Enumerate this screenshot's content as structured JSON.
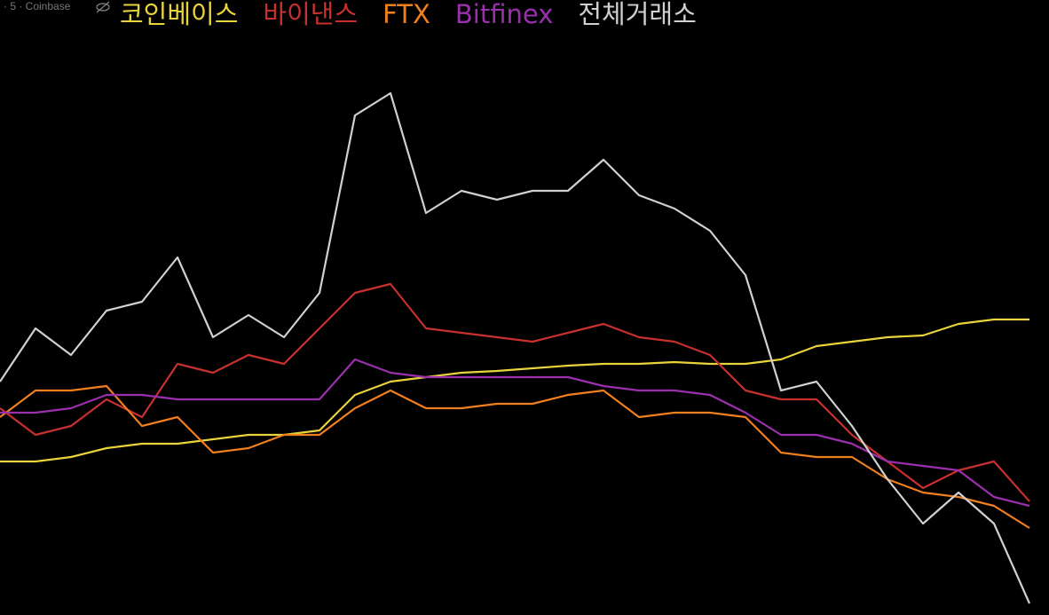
{
  "chart_data": {
    "type": "line",
    "source": "· 5 · Coinbase",
    "categories": [
      null,
      null,
      null,
      null,
      null,
      null,
      null,
      null,
      null,
      null,
      null,
      null,
      null,
      null,
      null,
      null,
      null,
      null,
      null,
      null,
      null,
      null,
      null,
      null,
      null,
      null,
      null,
      null,
      null,
      null
    ],
    "ylim": [
      0,
      693
    ],
    "legend": "top-left",
    "series": [
      {
        "name": "코인베이스",
        "color": "#e8d43a",
        "values": [
          173,
          173,
          178,
          188,
          193,
          193,
          198,
          203,
          203,
          208,
          248,
          263,
          268,
          273,
          275,
          278,
          281,
          283,
          283,
          285,
          283,
          283,
          288,
          303,
          308,
          313,
          315,
          328,
          333,
          333
        ]
      },
      {
        "name": "바이낸스",
        "color": "#c8302e",
        "values": [
          233,
          203,
          213,
          243,
          223,
          283,
          273,
          293,
          283,
          323,
          363,
          373,
          323,
          318,
          313,
          308,
          318,
          328,
          313,
          308,
          293,
          253,
          243,
          243,
          203,
          173,
          143,
          163,
          173,
          128
        ]
      },
      {
        "name": "FTX",
        "color": "#f07f1e",
        "values": [
          223,
          253,
          253,
          258,
          213,
          223,
          183,
          188,
          203,
          203,
          233,
          253,
          233,
          233,
          238,
          238,
          248,
          253,
          223,
          228,
          228,
          223,
          183,
          178,
          178,
          153,
          138,
          133,
          123,
          98
        ]
      },
      {
        "name": "Bitfinex",
        "color": "#9b2fae",
        "values": [
          228,
          228,
          233,
          248,
          248,
          243,
          243,
          243,
          243,
          243,
          288,
          273,
          268,
          268,
          268,
          268,
          268,
          258,
          253,
          253,
          248,
          228,
          203,
          203,
          193,
          173,
          168,
          163,
          133,
          123
        ]
      },
      {
        "name": "전체거래소",
        "color": "#d0d0d0",
        "values": [
          263,
          323,
          293,
          343,
          353,
          403,
          313,
          338,
          313,
          363,
          563,
          588,
          453,
          478,
          468,
          478,
          478,
          513,
          473,
          458,
          433,
          383,
          253,
          263,
          213,
          153,
          103,
          138,
          103,
          13
        ]
      }
    ]
  }
}
